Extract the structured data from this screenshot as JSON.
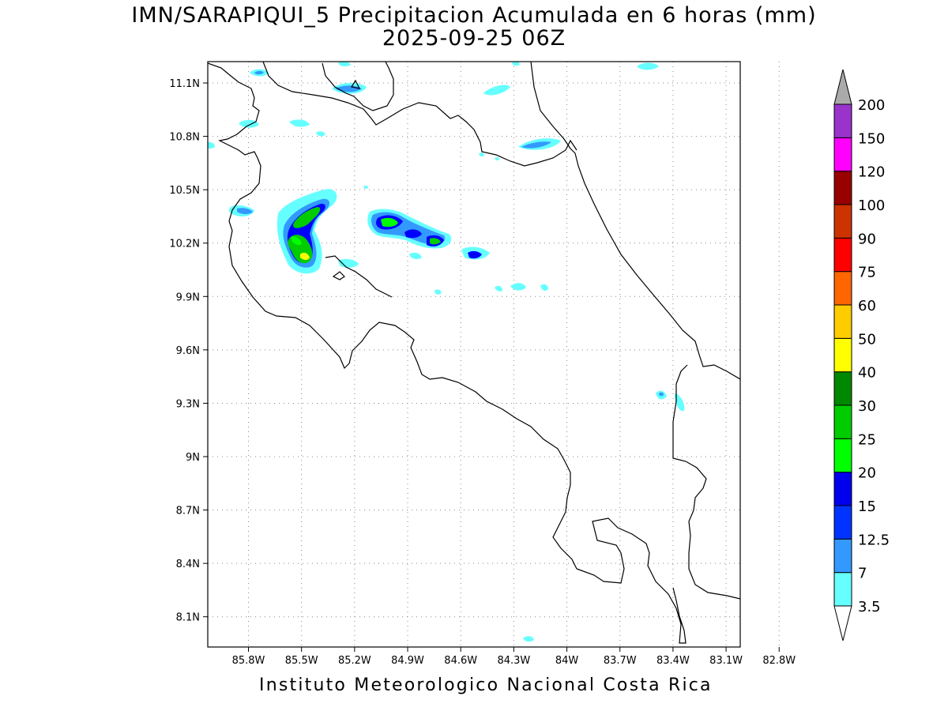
{
  "title_line1": "IMN/SARAPIQUI_5 Precipitacion Acumulada en 6 horas (mm)",
  "title_line2": "2025-09-25 06Z",
  "footer": "Instituto Meteorologico Nacional Costa Rica",
  "map": {
    "lon_range": [
      -86.03,
      -83.02
    ],
    "lat_range": [
      7.93,
      11.22
    ],
    "lat_ticks": [
      "11.1N",
      "10.8N",
      "10.5N",
      "10.2N",
      "9.9N",
      "9.6N",
      "9.3N",
      "9N",
      "8.7N",
      "8.4N",
      "8.1N"
    ],
    "lat_values": [
      11.1,
      10.8,
      10.5,
      10.2,
      9.9,
      9.6,
      9.3,
      9.0,
      8.7,
      8.4,
      8.1
    ],
    "lon_ticks": [
      "85.8W",
      "85.5W",
      "85.2W",
      "84.9W",
      "84.6W",
      "84.3W",
      "84W",
      "83.7W",
      "83.4W",
      "83.1W",
      "82.8W"
    ],
    "lon_values": [
      -85.8,
      -85.5,
      -85.2,
      -84.9,
      -84.6,
      -84.3,
      -84.0,
      -83.7,
      -83.4,
      -83.1,
      -82.8
    ],
    "grid": "dotted"
  },
  "colorbar": {
    "labels": [
      "3.5",
      "7",
      "12.5",
      "15",
      "20",
      "25",
      "30",
      "40",
      "50",
      "60",
      "75",
      "90",
      "100",
      "120",
      "150",
      "200"
    ],
    "colors": [
      "#66ffff",
      "#3399ff",
      "#0033ff",
      "#0000ee",
      "#00ff00",
      "#00cc00",
      "#008800",
      "#ffff00",
      "#ffcc00",
      "#ff6600",
      "#ff0000",
      "#cc3300",
      "#990000",
      "#ff00ff",
      "#9933cc",
      "#f5f5f5"
    ],
    "cap_color": "#aaaaaa"
  },
  "palette": {
    "l1": "#66ffff",
    "l2": "#3399ff",
    "l3": "#0000ff",
    "l4": "#00ff00",
    "l5": "#00cc00",
    "l6": "#ffff00"
  }
}
